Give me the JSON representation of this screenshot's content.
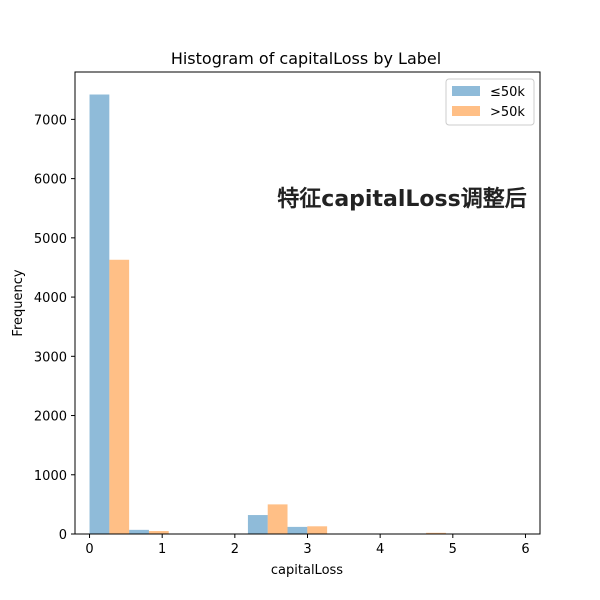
{
  "chart_data": {
    "type": "bar",
    "title": "Histogram of capitalLoss by Label",
    "xlabel": "capitalLoss",
    "ylabel": "Frequency",
    "xlim": [
      -0.2,
      6.2
    ],
    "ylim": [
      0,
      7800
    ],
    "xticks": [
      0,
      1,
      2,
      3,
      4,
      5,
      6
    ],
    "yticks": [
      0,
      1000,
      2000,
      3000,
      4000,
      5000,
      6000,
      7000
    ],
    "bin_edges": [
      0,
      0.545,
      1.09,
      1.635,
      2.18,
      2.725,
      3.27,
      3.815,
      4.36,
      4.905,
      5.45,
      5.995
    ],
    "series": [
      {
        "name": "≤50k",
        "color": "#1f77b4",
        "opacity": 0.5,
        "values": [
          7420,
          70,
          0,
          0,
          320,
          120,
          0,
          0,
          0,
          5,
          0
        ]
      },
      {
        "name": ">50k",
        "color": "#ff7f0e",
        "opacity": 0.5,
        "values": [
          4630,
          50,
          0,
          0,
          500,
          130,
          0,
          0,
          20,
          0,
          0
        ]
      }
    ],
    "legend_position": "top-right",
    "grid": false,
    "annotation": "特征capitalLoss调整后"
  }
}
